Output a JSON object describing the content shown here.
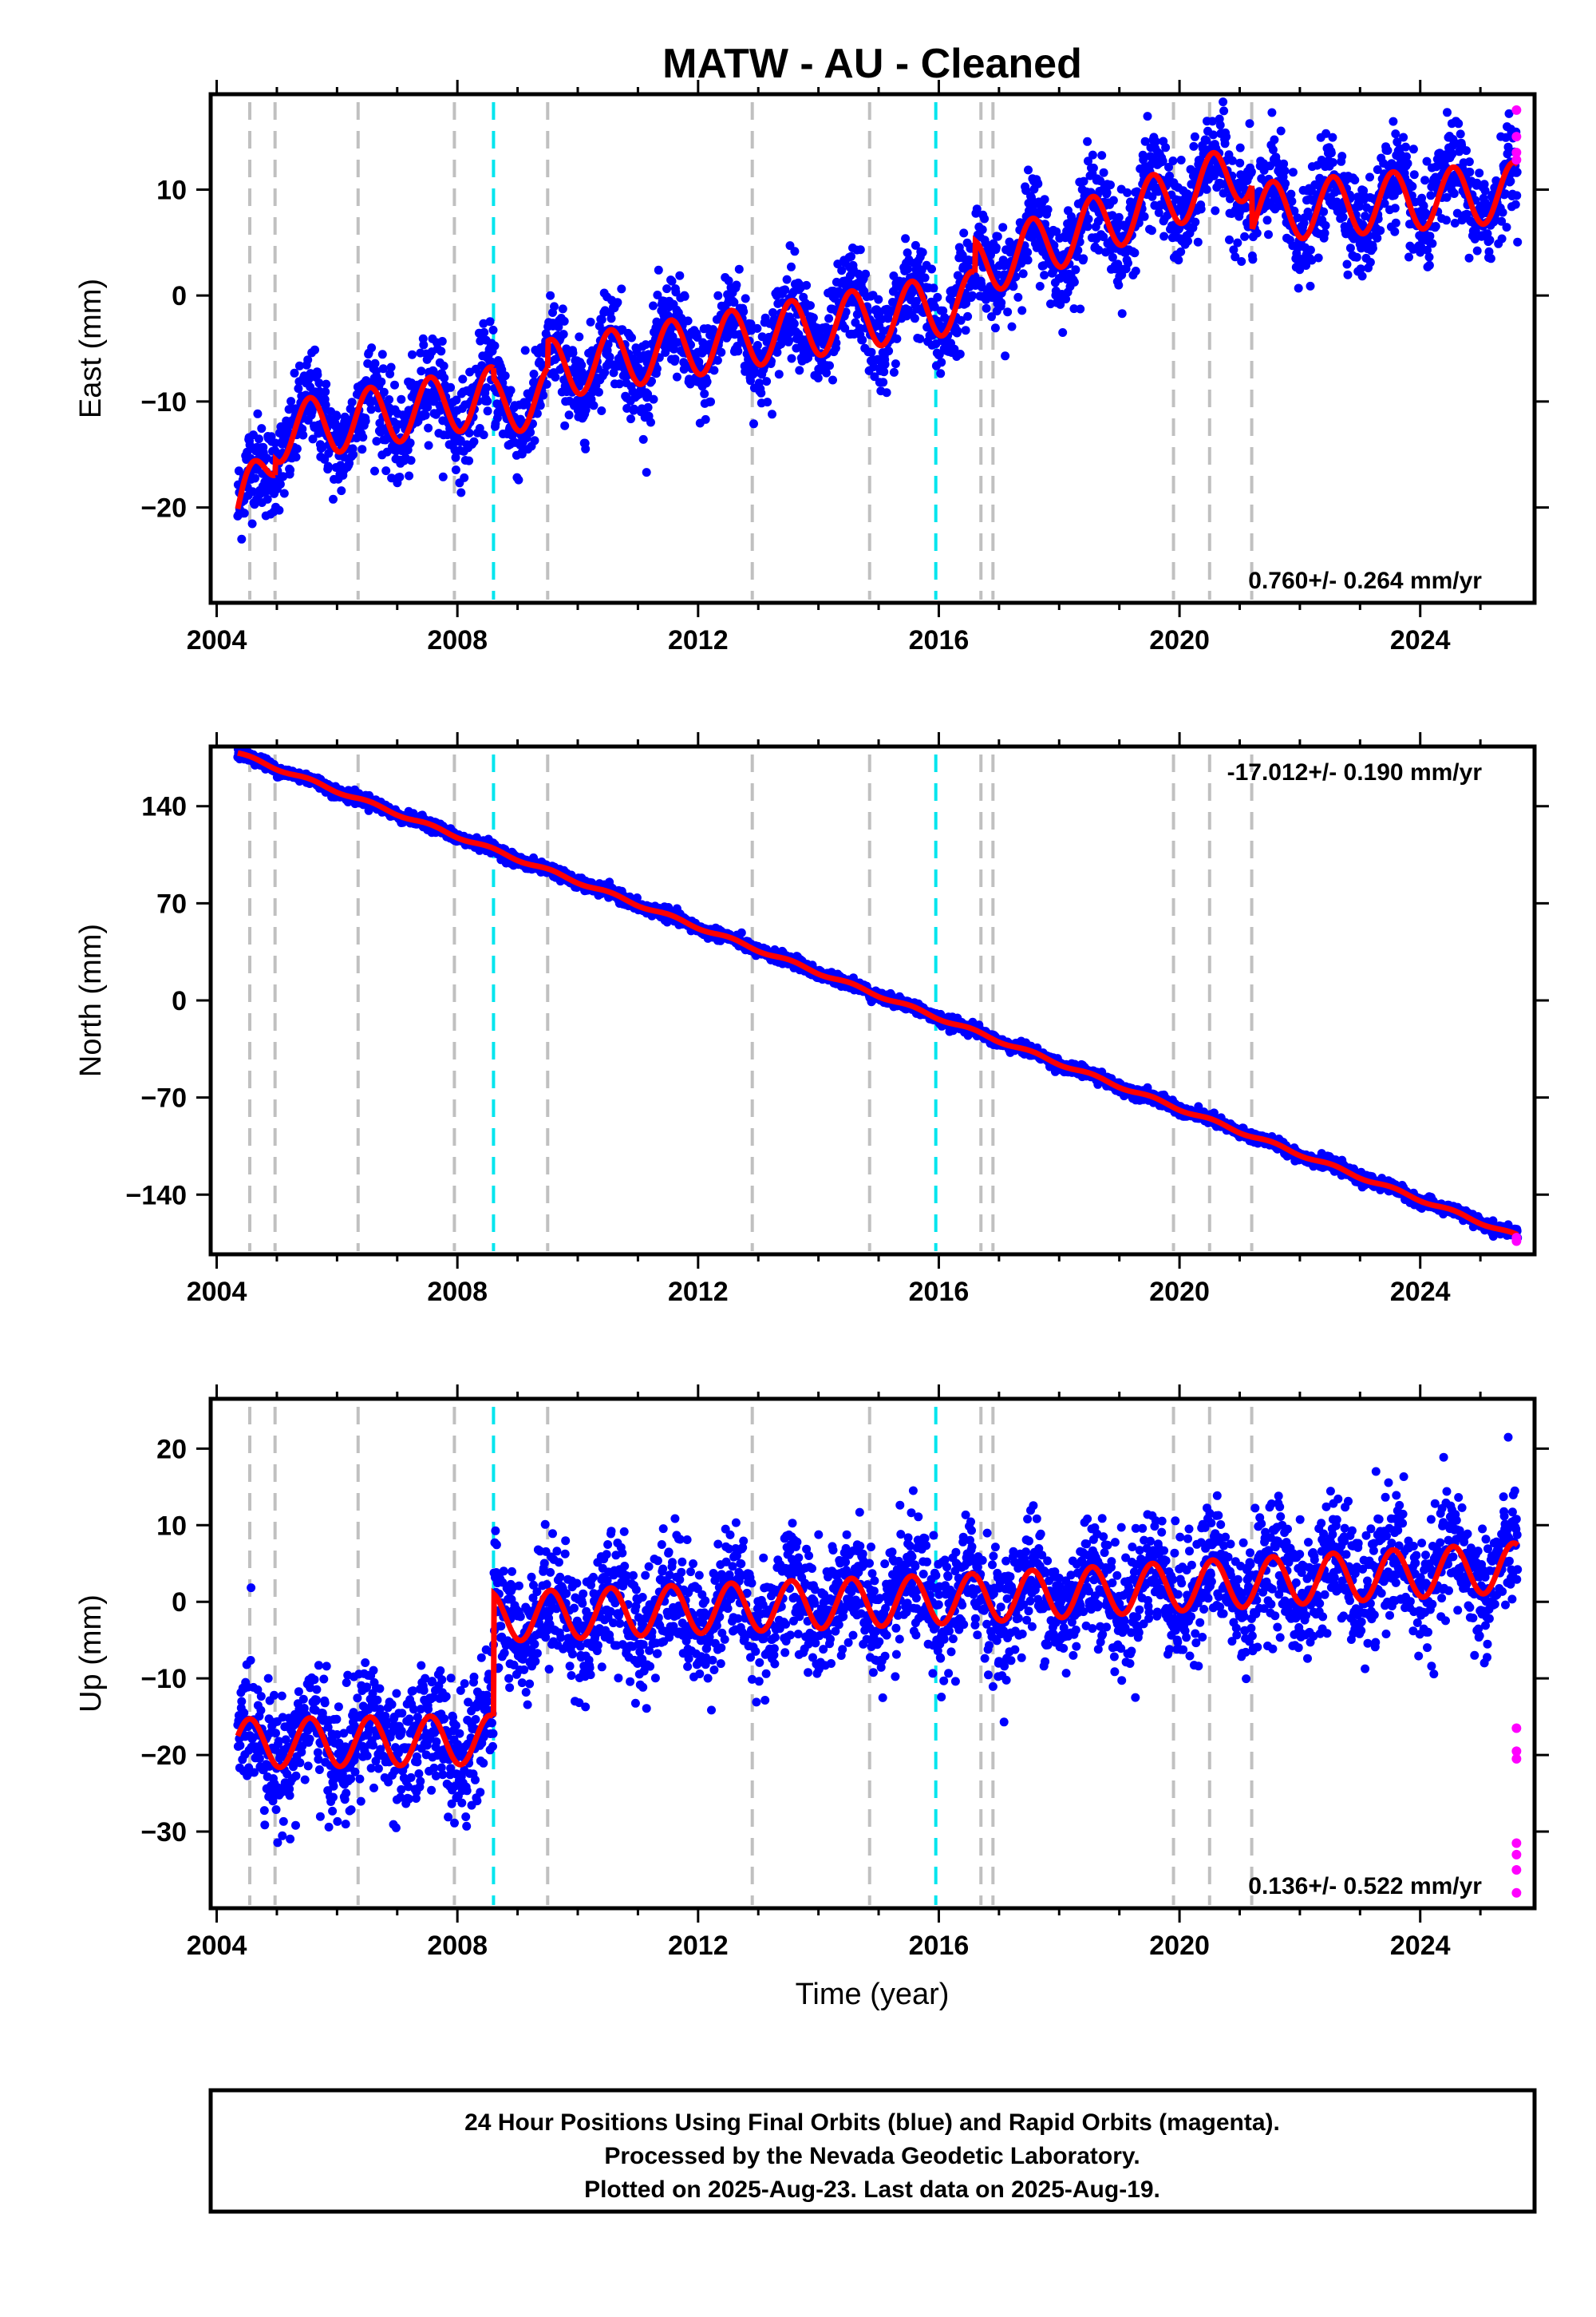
{
  "title": "MATW  - AU - Cleaned",
  "xlabel": "Time (year)",
  "colors": {
    "final": "#0000ff",
    "rapid": "#ff00ff",
    "model": "#ff0000",
    "event_gray": "#c0c0c0",
    "event_cyan": "#00e5ee"
  },
  "chart_data": [
    {
      "type": "scatter",
      "name": "east",
      "ylabel": "East (mm)",
      "xlim": [
        2003.9,
        2025.9
      ],
      "ylim": [
        -29,
        19
      ],
      "xticks": [
        2004,
        2008,
        2012,
        2016,
        2020,
        2024
      ],
      "yticks": [
        -20,
        -10,
        0,
        10
      ],
      "ytick_labels": [
        "−20",
        "−10",
        "0",
        "10"
      ],
      "rate_label": "0.760+/- 0.264 mm/yr",
      "rate_position": "bottom-right",
      "model_segments": [
        {
          "start": 2004.35,
          "end": 2004.97,
          "y0": -21.0,
          "y1": -14.5
        },
        {
          "start": 2004.97,
          "end": 2008.6,
          "y0": -13.0,
          "y1": -9.5
        },
        {
          "start": 2008.6,
          "end": 2009.5,
          "y0": -10.5,
          "y1": -9.5
        },
        {
          "start": 2009.5,
          "end": 2016.6,
          "y0": -7.0,
          "y1": -0.5
        },
        {
          "start": 2016.6,
          "end": 2021.2,
          "y0": 2.5,
          "y1": 12.0
        },
        {
          "start": 2021.2,
          "end": 2025.62,
          "y0": 7.8,
          "y1": 9.8
        }
      ],
      "seasonal_amplitude_mm": 2.8,
      "scatter_noise_mm": 2.2,
      "rapid_points": [
        {
          "x": 2025.6,
          "y": 17.5
        },
        {
          "x": 2025.6,
          "y": 15.0
        },
        {
          "x": 2025.6,
          "y": 13.5
        },
        {
          "x": 2025.6,
          "y": 12.8
        }
      ]
    },
    {
      "type": "scatter",
      "name": "north",
      "ylabel": "North (mm)",
      "xlim": [
        2003.9,
        2025.9
      ],
      "ylim": [
        -183,
        183
      ],
      "xticks": [
        2004,
        2008,
        2012,
        2016,
        2020,
        2024
      ],
      "yticks": [
        -140,
        -70,
        0,
        70,
        140
      ],
      "ytick_labels": [
        "−140",
        "−70",
        "0",
        "70",
        "140"
      ],
      "rate_label": "-17.012+/- 0.190 mm/yr",
      "rate_position": "top-right",
      "model_segments": [
        {
          "start": 2004.35,
          "end": 2025.62,
          "y0": 178.0,
          "y1": -170.0
        }
      ],
      "seasonal_amplitude_mm": 1.2,
      "scatter_noise_mm": 2.0,
      "rapid_points": [
        {
          "x": 2025.6,
          "y": -171.0
        },
        {
          "x": 2025.6,
          "y": -173.5
        }
      ]
    },
    {
      "type": "scatter",
      "name": "up",
      "ylabel": "Up (mm)",
      "xlim": [
        2003.9,
        2025.9
      ],
      "ylim": [
        -40,
        26.5
      ],
      "xticks": [
        2004,
        2008,
        2012,
        2016,
        2020,
        2024
      ],
      "yticks": [
        -30,
        -20,
        -10,
        0,
        10,
        20
      ],
      "ytick_labels": [
        "−30",
        "−20",
        "−10",
        "0",
        "10",
        "20"
      ],
      "rate_label": "0.136+/- 0.522 mm/yr",
      "rate_position": "bottom-right",
      "model_segments": [
        {
          "start": 2004.35,
          "end": 2008.6,
          "y0": -18.5,
          "y1": -18.0
        },
        {
          "start": 2008.6,
          "end": 2016.6,
          "y0": -2.0,
          "y1": 0.5
        },
        {
          "start": 2016.6,
          "end": 2025.62,
          "y0": 0.5,
          "y1": 4.5
        }
      ],
      "seasonal_amplitude_mm": 3.2,
      "scatter_noise_mm": 4.0,
      "rapid_points": [
        {
          "x": 2025.6,
          "y": -16.5
        },
        {
          "x": 2025.6,
          "y": -19.5
        },
        {
          "x": 2025.6,
          "y": -20.5
        },
        {
          "x": 2025.6,
          "y": -31.5
        },
        {
          "x": 2025.6,
          "y": -33.0
        },
        {
          "x": 2025.6,
          "y": -35.0
        },
        {
          "x": 2025.6,
          "y": -38.0
        }
      ]
    }
  ],
  "events": {
    "gray": [
      2004.55,
      2004.97,
      2006.35,
      2007.95,
      2009.5,
      2012.9,
      2014.85,
      2016.7,
      2016.9,
      2019.9,
      2020.5,
      2021.2
    ],
    "cyan": [
      2008.6,
      2015.95
    ]
  },
  "footer": {
    "line1": "24 Hour Positions Using Final Orbits (blue) and Rapid Orbits (magenta).",
    "line2": "Processed by the Nevada Geodetic Laboratory.",
    "line3": "Plotted on 2025-Aug-23. Last data on 2025-Aug-19."
  }
}
